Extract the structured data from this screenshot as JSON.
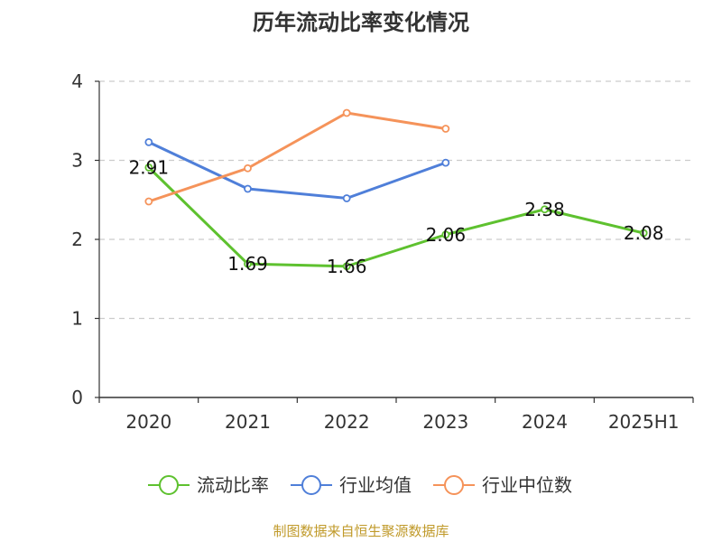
{
  "chart_data": {
    "type": "line",
    "title": "历年流动比率变化情况",
    "categories": [
      "2020",
      "2021",
      "2022",
      "2023",
      "2024",
      "2025H1"
    ],
    "ylim": [
      0,
      4
    ],
    "yticks": [
      0,
      1,
      2,
      3,
      4
    ],
    "grid": true,
    "legend_position": "bottom",
    "series": [
      {
        "name": "流动比率",
        "color": "#5ec12f",
        "values": [
          2.91,
          1.69,
          1.66,
          2.06,
          2.38,
          2.08
        ],
        "labels": [
          "2.91",
          "1.69",
          "1.66",
          "2.06",
          "2.38",
          "2.08"
        ]
      },
      {
        "name": "行业均值",
        "color": "#4f7fd9",
        "values": [
          3.23,
          2.64,
          2.52,
          2.97,
          null,
          null
        ]
      },
      {
        "name": "行业中位数",
        "color": "#f5935a",
        "values": [
          2.48,
          2.9,
          3.6,
          3.4,
          null,
          null
        ]
      }
    ]
  },
  "source_text": "制图数据来自恒生聚源数据库",
  "source_color": "#c09a2a"
}
